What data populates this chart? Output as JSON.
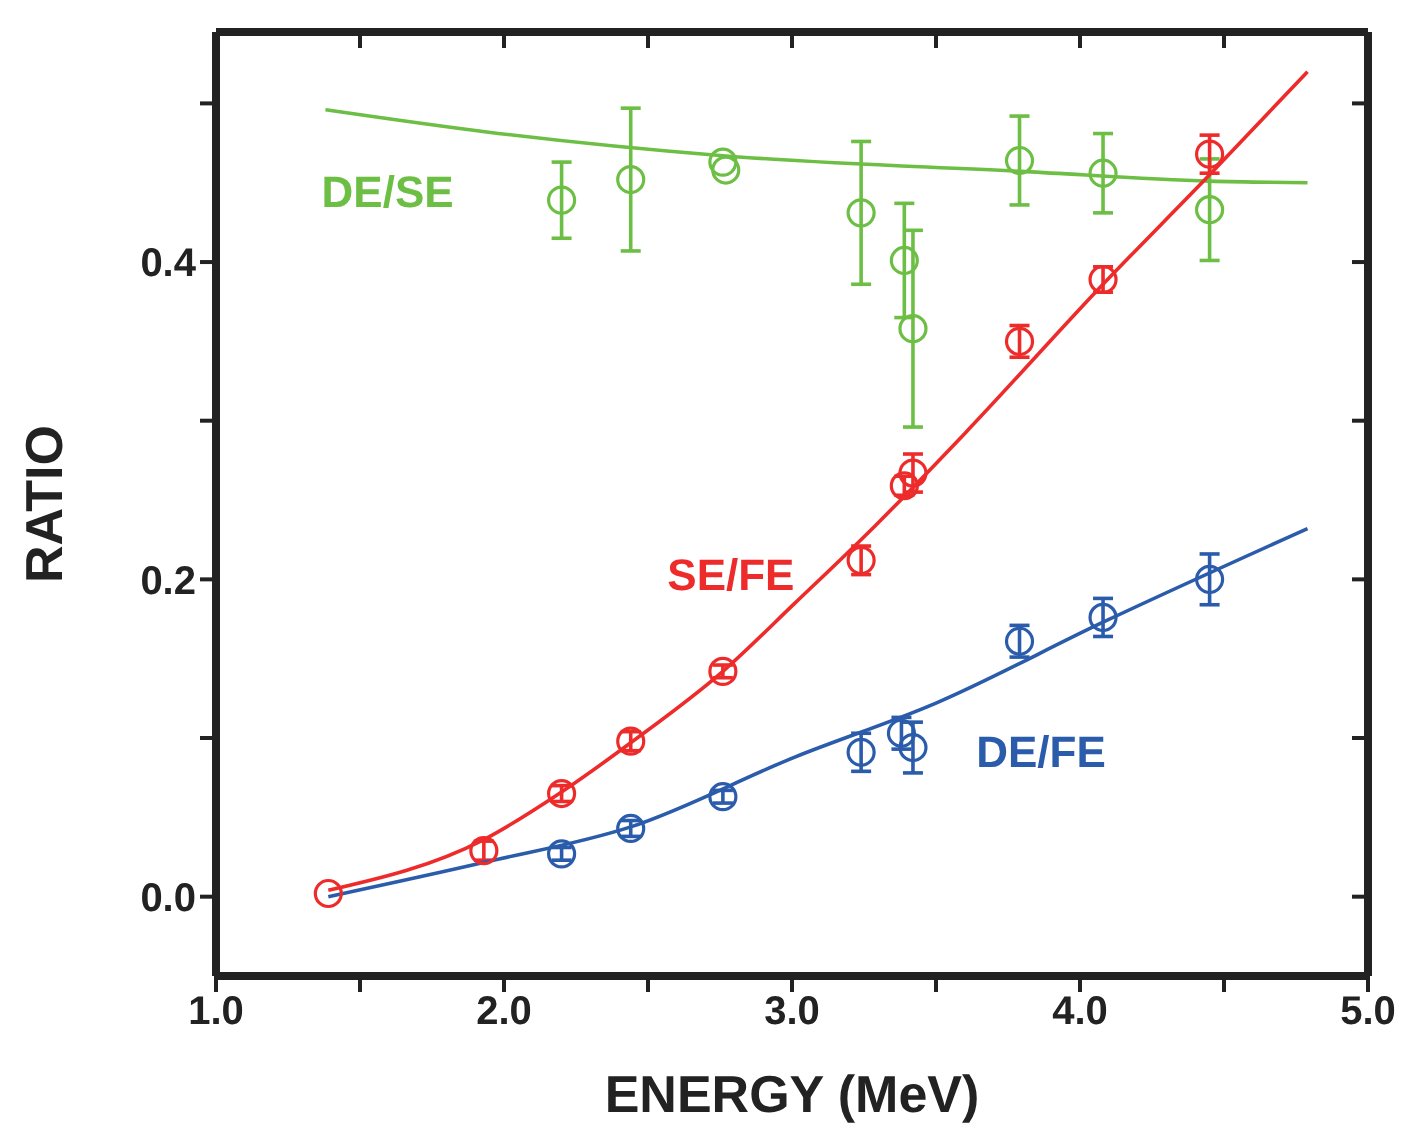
{
  "chart_data": {
    "type": "scatter",
    "xlabel": "ENERGY (MeV)",
    "ylabel": "RATIO",
    "xlim": [
      1.0,
      5.0
    ],
    "ylim": [
      -0.05,
      0.545
    ],
    "xticks": [
      "1.0",
      {
        "value": 1.5,
        "label": null
      },
      {
        "value": 2,
        "label": "2.0"
      },
      {
        "value": 2.5,
        "label": null
      },
      {
        "value": 3,
        "label": "3.0"
      },
      {
        "value": 3.5,
        "label": null
      },
      {
        "value": 4,
        "label": "4.0"
      },
      {
        "value": 4.5,
        "label": null
      },
      {
        "value": 5,
        "label": "5.0"
      }
    ],
    "yticks": [
      {
        "value": 0,
        "label": "0.0"
      },
      {
        "value": 0.1,
        "label": null
      },
      {
        "value": 0.2,
        "label": "0.2"
      },
      {
        "value": 0.3,
        "label": null
      },
      {
        "value": 0.4,
        "label": "0.4"
      },
      {
        "value": 0.5,
        "label": null
      }
    ],
    "grid": false,
    "legend": false,
    "line_style": "solid",
    "series": [
      {
        "name": "DE/SE",
        "marker": "circle",
        "color": "#6cbf44",
        "x": [
          2.2,
          2.44,
          2.76,
          2.77,
          3.24,
          3.39,
          3.42,
          3.79,
          4.08,
          4.45
        ],
        "values": [
          0.439,
          0.452,
          0.463,
          0.458,
          0.431,
          0.401,
          0.358,
          0.464,
          0.456,
          0.433
        ],
        "errors": [
          0.024,
          0.045,
          null,
          null,
          0.045,
          0.036,
          0.062,
          0.028,
          0.025,
          0.032
        ]
      },
      {
        "type": "line",
        "color": "#6cbf44",
        "x": [
          1.38,
          1.94,
          2.76,
          3.81,
          4.45,
          4.79
        ],
        "values": [
          0.496,
          0.482,
          0.467,
          0.457,
          0.451,
          0.45
        ]
      },
      {
        "name": "SE/FE",
        "marker": "circle",
        "color": "#ee2b2b",
        "x": [
          1.39,
          1.93,
          2.2,
          2.44,
          2.76,
          3.24,
          3.39,
          3.42,
          3.79,
          4.08,
          4.45
        ],
        "values": [
          0.002,
          0.029,
          0.065,
          0.098,
          0.142,
          0.212,
          0.259,
          0.267,
          0.35,
          0.389,
          0.468
        ],
        "errors": [
          null,
          0.006,
          0.005,
          0.006,
          0.004,
          0.009,
          0.006,
          0.012,
          0.01,
          0.008,
          0.012
        ]
      },
      {
        "type": "line",
        "color": "#ee2b2b",
        "x": [
          1.39,
          1.93,
          2.2,
          2.44,
          2.76,
          3.01,
          3.29,
          3.6,
          4.08,
          4.45,
          4.79
        ],
        "values": [
          0.004,
          0.036,
          0.066,
          0.097,
          0.142,
          0.185,
          0.234,
          0.292,
          0.386,
          0.455,
          0.52
        ]
      },
      {
        "name": "DE/FE",
        "marker": "circle",
        "color": "#2b5cab",
        "x": [
          2.2,
          2.44,
          2.76,
          3.24,
          3.38,
          3.42,
          3.79,
          4.08,
          4.45
        ],
        "values": [
          0.027,
          0.043,
          0.063,
          0.091,
          0.103,
          0.094,
          0.161,
          0.176,
          0.2
        ],
        "errors": [
          0.004,
          0.005,
          0.004,
          0.012,
          0.01,
          0.016,
          0.01,
          0.012,
          0.016
        ]
      },
      {
        "type": "line",
        "color": "#2b5cab",
        "x": [
          1.39,
          1.94,
          2.44,
          3.01,
          3.5,
          4.08,
          4.79
        ],
        "values": [
          0.0,
          0.022,
          0.044,
          0.088,
          0.122,
          0.173,
          0.232
        ]
      }
    ]
  }
}
